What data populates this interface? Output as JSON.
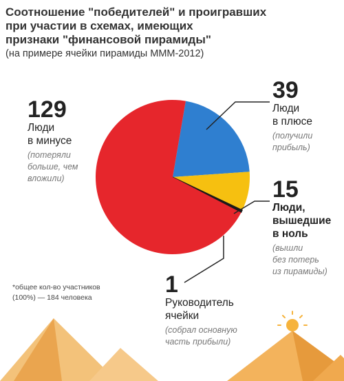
{
  "title": "Соотношение \"победителей\" и проигравших\nпри участии в схемах, имеющих\nпризнаки \"финансовой пирамиды\"",
  "subtitle": "(на примере ячейки пирамиды МММ-2012)",
  "footnote": "*общее кол-во участников\n(100%) — 184 человека",
  "colors": {
    "losers": "#e6262c",
    "gainers": "#2f7fd0",
    "even": "#f6c010",
    "leader": "#1a1a1a",
    "sand": "#f5b75e",
    "sand_dark": "#e9a24a",
    "sun": "#f6b33c"
  },
  "chart_data": {
    "type": "pie",
    "title": "Соотношение \"победителей\" и проигравших при участии в схемах, имеющих признаки \"финансовой пирамиды\"",
    "subtitle": "(на примере ячейки пирамиды МММ-2012)",
    "total": 184,
    "slices": [
      {
        "value": 129,
        "label": "Люди\nв минусе",
        "note": "(потеряли\nбольше, чем\nвложили)",
        "color": "#e6262c"
      },
      {
        "value": 39,
        "label": "Люди\nв плюсе",
        "note": "(получили\nприбыль)",
        "color": "#2f7fd0"
      },
      {
        "value": 15,
        "label": "Люди,\nвышедшие\nв ноль",
        "note": "(вышли\nбез потерь\nиз пирамиды)",
        "color": "#f6c010"
      },
      {
        "value": 1,
        "label": "Руководитель\nячейки",
        "note": "(собрал основную\nчасть прибыли)",
        "color": "#1a1a1a"
      }
    ]
  }
}
